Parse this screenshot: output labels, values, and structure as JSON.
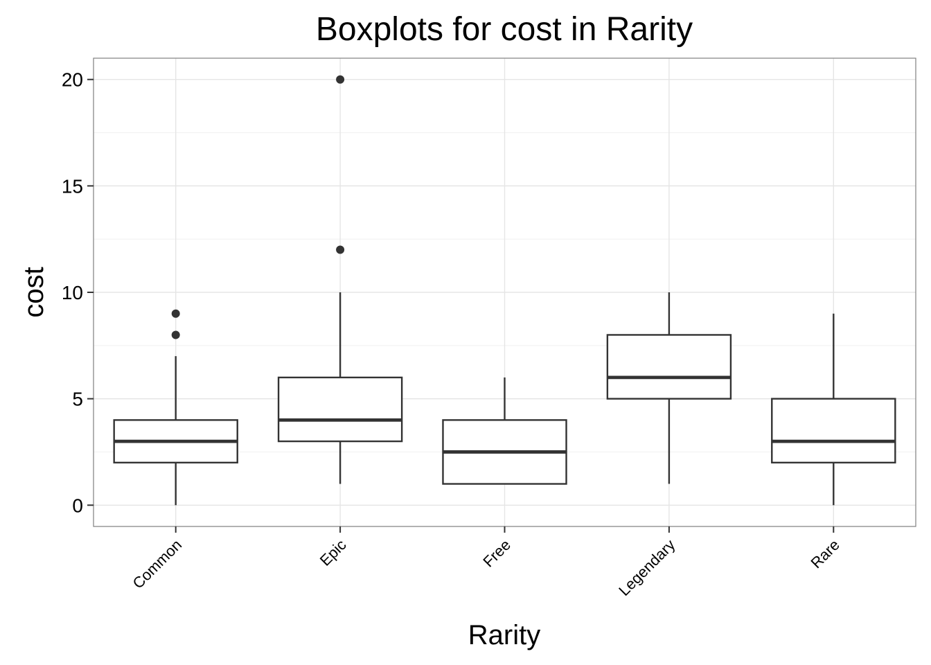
{
  "chart_data": {
    "type": "boxplot",
    "title": "Boxplots for cost in Rarity",
    "xlabel": "Rarity",
    "ylabel": "cost",
    "categories": [
      "Common",
      "Epic",
      "Free",
      "Legendary",
      "Rare"
    ],
    "ylim": [
      -1,
      21
    ],
    "yticks": [
      0,
      5,
      10,
      15,
      20
    ],
    "grid": true,
    "boxes": [
      {
        "category": "Common",
        "whisker_low": 0,
        "q1": 2,
        "median": 3,
        "q3": 4,
        "whisker_high": 7,
        "outliers": [
          8,
          9
        ]
      },
      {
        "category": "Epic",
        "whisker_low": 1,
        "q1": 3,
        "median": 4,
        "q3": 6,
        "whisker_high": 10,
        "outliers": [
          12,
          20
        ]
      },
      {
        "category": "Free",
        "whisker_low": 1,
        "q1": 1,
        "median": 2.5,
        "q3": 4,
        "whisker_high": 6,
        "outliers": []
      },
      {
        "category": "Legendary",
        "whisker_low": 1,
        "q1": 5,
        "median": 6,
        "q3": 8,
        "whisker_high": 10,
        "outliers": []
      },
      {
        "category": "Rare",
        "whisker_low": 0,
        "q1": 2,
        "median": 3,
        "q3": 5,
        "whisker_high": 9,
        "outliers": []
      }
    ],
    "colors": {
      "box_stroke": "#333333",
      "grid_major": "#e5e5e5",
      "grid_minor": "#f2f2f2",
      "panel_border": "#7f7f7f",
      "background": "#ffffff"
    }
  }
}
